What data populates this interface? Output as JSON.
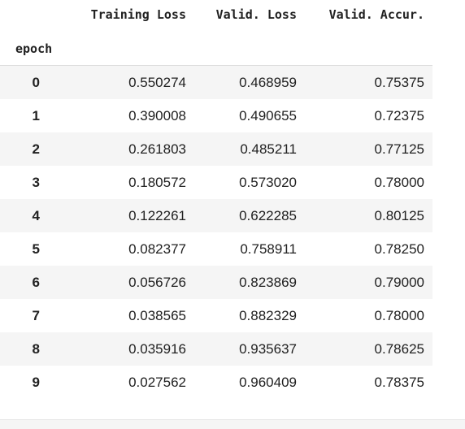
{
  "table": {
    "columns": [
      "Training Loss",
      "Valid. Loss",
      "Valid. Accur."
    ],
    "index_name": "epoch",
    "rows": [
      {
        "index": "0",
        "training_loss": "0.550274",
        "valid_loss": "0.468959",
        "valid_accur": "0.75375"
      },
      {
        "index": "1",
        "training_loss": "0.390008",
        "valid_loss": "0.490655",
        "valid_accur": "0.72375"
      },
      {
        "index": "2",
        "training_loss": "0.261803",
        "valid_loss": "0.485211",
        "valid_accur": "0.77125"
      },
      {
        "index": "3",
        "training_loss": "0.180572",
        "valid_loss": "0.573020",
        "valid_accur": "0.78000"
      },
      {
        "index": "4",
        "training_loss": "0.122261",
        "valid_loss": "0.622285",
        "valid_accur": "0.80125"
      },
      {
        "index": "5",
        "training_loss": "0.082377",
        "valid_loss": "0.758911",
        "valid_accur": "0.78250"
      },
      {
        "index": "6",
        "training_loss": "0.056726",
        "valid_loss": "0.823869",
        "valid_accur": "0.79000"
      },
      {
        "index": "7",
        "training_loss": "0.038565",
        "valid_loss": "0.882329",
        "valid_accur": "0.78000"
      },
      {
        "index": "8",
        "training_loss": "0.035916",
        "valid_loss": "0.935637",
        "valid_accur": "0.78625"
      },
      {
        "index": "9",
        "training_loss": "0.027562",
        "valid_loss": "0.960409",
        "valid_accur": "0.78375"
      }
    ]
  },
  "colors": {
    "text": "#212121",
    "stripe": "#f5f5f5",
    "divider": "#dcdcdc"
  }
}
